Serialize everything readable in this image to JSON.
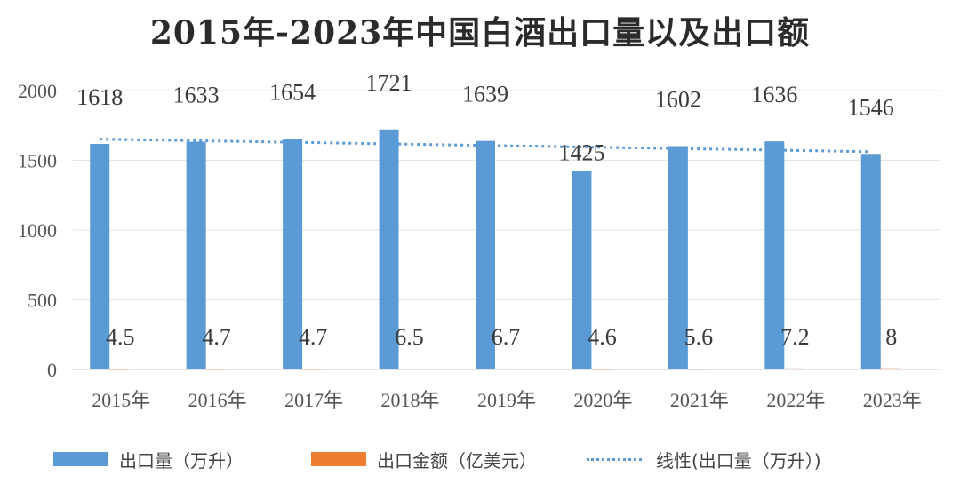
{
  "chart_data": {
    "type": "bar",
    "title": "2015年-2023年中国白酒出口量以及出口额",
    "categories": [
      "2015年",
      "2016年",
      "2017年",
      "2018年",
      "2019年",
      "2020年",
      "2021年",
      "2022年",
      "2023年"
    ],
    "series": [
      {
        "name": "出口量（万升）",
        "values": [
          1618,
          1633,
          1654,
          1721,
          1639,
          1425,
          1602,
          1636,
          1546
        ],
        "color": "#5b9bd5",
        "labels": [
          "1618",
          "1633",
          "1654",
          "1721",
          "1639",
          "1425",
          "1602",
          "1636",
          "1546"
        ]
      },
      {
        "name": "出口金额（亿美元）",
        "values": [
          4.5,
          4.7,
          4.7,
          6.5,
          6.7,
          4.6,
          5.6,
          7.2,
          8
        ],
        "color": "#ed7d31",
        "labels": [
          "4.5",
          "4.7",
          "4.7",
          "6.5",
          "6.7",
          "4.6",
          "5.6",
          "7.2",
          "8"
        ]
      }
    ],
    "trendline": {
      "name": "线性(出口量（万升）)",
      "style": "dotted",
      "color": "#5b9bd5",
      "start": 1652,
      "end": 1562
    },
    "yticks": [
      "0",
      "500",
      "1000",
      "1500",
      "2000"
    ],
    "ylim": [
      0,
      2000
    ],
    "grid": true,
    "legend_position": "bottom"
  }
}
